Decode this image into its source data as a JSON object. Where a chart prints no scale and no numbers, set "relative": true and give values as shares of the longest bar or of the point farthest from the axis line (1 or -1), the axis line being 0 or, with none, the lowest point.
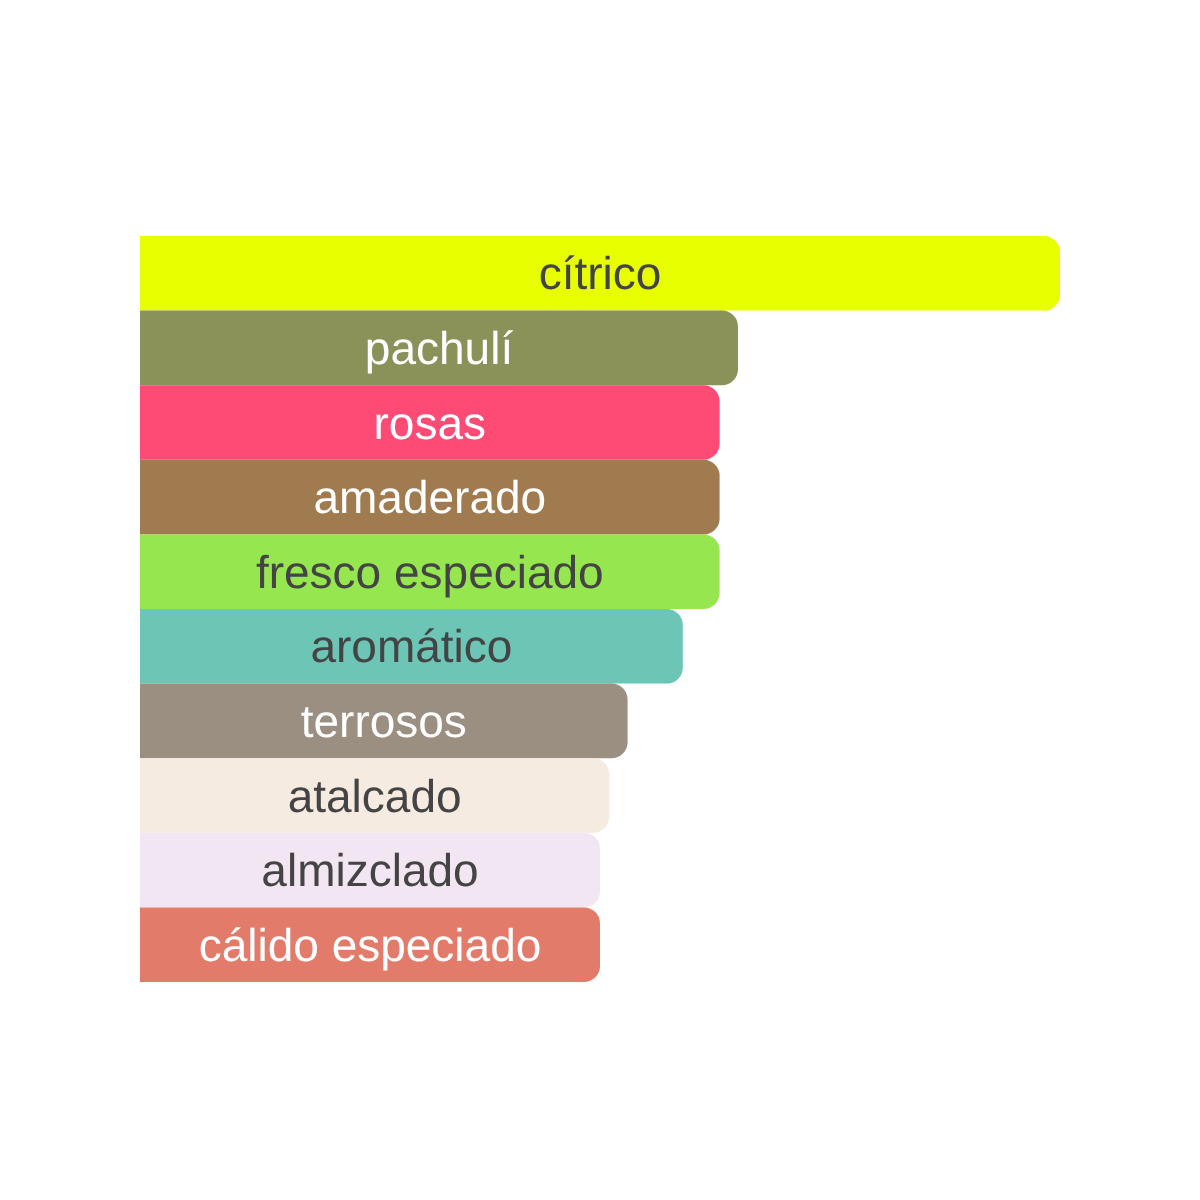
{
  "chart_data": {
    "type": "bar",
    "orientation": "horizontal",
    "relative": true,
    "categories": [
      "cítrico",
      "pachulí",
      "rosas",
      "amaderado",
      "fresco especiado",
      "aromático",
      "terrosos",
      "atalcado",
      "almizclado",
      "cálido especiado"
    ],
    "values": [
      1,
      0.65,
      0.63,
      0.63,
      0.63,
      0.59,
      0.53,
      0.51,
      0.5,
      0.5
    ],
    "colors": [
      "#e8ff00",
      "#8a9159",
      "#fd4b75",
      "#a07b4f",
      "#96e650",
      "#6cc5b5",
      "#9a8f80",
      "#f5ebe0",
      "#f3e6f3",
      "#e27b69"
    ]
  }
}
